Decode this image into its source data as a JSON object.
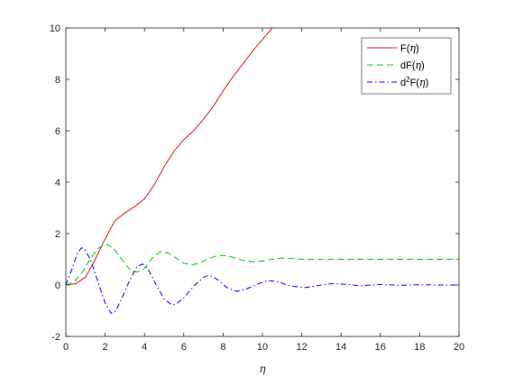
{
  "chart_data": {
    "type": "line",
    "xlabel": "η",
    "ylabel": "",
    "xlim": [
      0,
      20
    ],
    "ylim": [
      -2,
      10
    ],
    "xticks": [
      0,
      2,
      4,
      6,
      8,
      10,
      12,
      14,
      16,
      18,
      20
    ],
    "yticks": [
      -2,
      0,
      2,
      4,
      6,
      8,
      10
    ],
    "grid": false,
    "legend_position": "top-right",
    "series": [
      {
        "name": "F(η)",
        "label_base": "F(",
        "label_sym": "η",
        "label_end": ")",
        "color": "#e41a1c",
        "dash": "solid",
        "x": [
          0,
          0.5,
          1.0,
          1.5,
          2.0,
          2.5,
          3.0,
          3.5,
          4.0,
          4.5,
          5.0,
          5.5,
          6.0,
          6.5,
          7.0,
          7.5,
          8.0,
          8.5,
          9.0,
          9.5,
          10.0,
          10.5
        ],
        "y": [
          0,
          0.05,
          0.3,
          1.0,
          1.8,
          2.5,
          2.8,
          3.05,
          3.35,
          3.9,
          4.6,
          5.2,
          5.65,
          6.0,
          6.45,
          6.95,
          7.55,
          8.1,
          8.6,
          9.1,
          9.55,
          10.0
        ]
      },
      {
        "name": "dF(η)",
        "label_base": "dF(",
        "label_sym": "η",
        "label_end": ")",
        "color": "#00cc00",
        "dash": "dashed",
        "x": [
          0,
          0.4,
          0.8,
          1.2,
          1.6,
          2.0,
          2.4,
          2.8,
          3.2,
          3.6,
          4.0,
          4.4,
          4.8,
          5.2,
          5.6,
          6.0,
          6.4,
          6.8,
          7.2,
          7.6,
          8.0,
          8.4,
          8.8,
          9.2,
          9.6,
          10.0,
          10.5,
          11.0,
          11.5,
          12.0,
          13.0,
          14.0,
          15.0,
          16.0,
          17.0,
          18.0,
          19.0,
          20.0
        ],
        "y": [
          0,
          0.1,
          0.45,
          0.95,
          1.4,
          1.6,
          1.45,
          1.05,
          0.65,
          0.5,
          0.65,
          1.05,
          1.3,
          1.25,
          1.05,
          0.85,
          0.78,
          0.85,
          1.0,
          1.12,
          1.15,
          1.1,
          1.0,
          0.93,
          0.9,
          0.93,
          1.0,
          1.05,
          1.03,
          1.0,
          0.99,
          1.0,
          1.0,
          1.0,
          1.0,
          1.0,
          1.0,
          1.0
        ]
      },
      {
        "name": "d²F(η)",
        "label_base": "d",
        "label_sup": "2",
        "label_rest": "F(",
        "label_sym": "η",
        "label_end": ")",
        "color": "#0000ff",
        "dash": "dashdot",
        "x": [
          0,
          0.3,
          0.6,
          0.8,
          1.0,
          1.3,
          1.6,
          2.0,
          2.3,
          2.5,
          2.8,
          3.2,
          3.6,
          3.9,
          4.2,
          4.6,
          5.0,
          5.4,
          5.6,
          6.0,
          6.5,
          7.0,
          7.3,
          7.7,
          8.2,
          8.7,
          9.2,
          9.8,
          10.3,
          10.8,
          11.5,
          12.2,
          12.8,
          13.5,
          14.2,
          15.0,
          16.0,
          17.0,
          18.0,
          19.0,
          20.0
        ],
        "y": [
          0,
          0.6,
          1.25,
          1.45,
          1.35,
          0.9,
          0.2,
          -0.7,
          -1.1,
          -1.05,
          -0.6,
          0.1,
          0.7,
          0.82,
          0.6,
          0.0,
          -0.55,
          -0.78,
          -0.75,
          -0.5,
          -0.05,
          0.3,
          0.38,
          0.22,
          -0.1,
          -0.25,
          -0.15,
          0.05,
          0.18,
          0.12,
          -0.05,
          -0.1,
          -0.02,
          0.05,
          0.03,
          -0.03,
          0.02,
          -0.01,
          0.01,
          0.0,
          0.0
        ]
      }
    ]
  }
}
